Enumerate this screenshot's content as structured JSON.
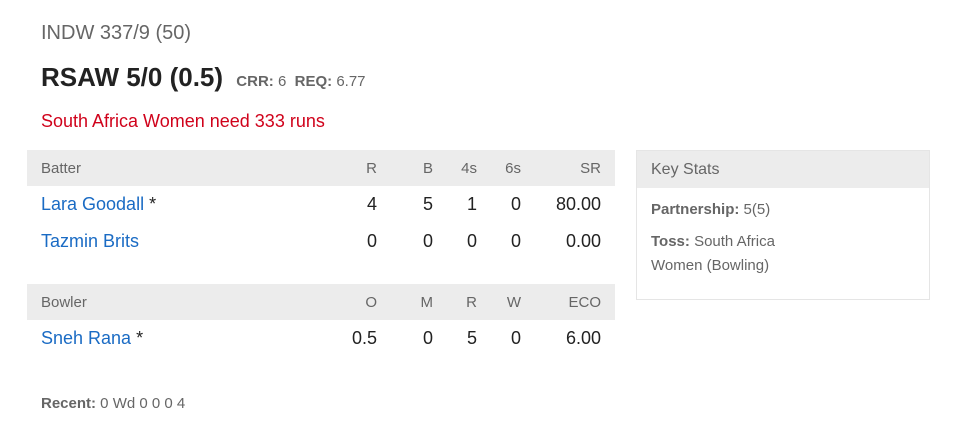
{
  "innings1": "INDW 337/9 (50)",
  "innings2": {
    "score": "RSAW 5/0 (0.5)",
    "crr_label": "CRR:",
    "crr": "6",
    "req_label": "REQ:",
    "req": "6.77"
  },
  "status": "South Africa Women need 333 runs",
  "batting": {
    "headers": [
      "Batter",
      "R",
      "B",
      "4s",
      "6s",
      "SR"
    ],
    "rows": [
      {
        "name": "Lara Goodall",
        "mark": " *",
        "r": "4",
        "b": "5",
        "fours": "1",
        "sixes": "0",
        "sr": "80.00"
      },
      {
        "name": "Tazmin Brits",
        "mark": "",
        "r": "0",
        "b": "0",
        "fours": "0",
        "sixes": "0",
        "sr": "0.00"
      }
    ]
  },
  "bowling": {
    "headers": [
      "Bowler",
      "O",
      "M",
      "R",
      "W",
      "ECO"
    ],
    "rows": [
      {
        "name": "Sneh Rana",
        "mark": " *",
        "o": "0.5",
        "m": "0",
        "r": "5",
        "w": "0",
        "eco": "6.00"
      }
    ]
  },
  "recent": {
    "label": "Recent:",
    "value": " 0 Wd 0 0 0 4"
  },
  "key_stats": {
    "title": "Key Stats",
    "partnership_label": "Partnership:",
    "partnership": " 5(5)",
    "toss_label": "Toss:",
    "toss": " South Africa Women (Bowling)"
  }
}
